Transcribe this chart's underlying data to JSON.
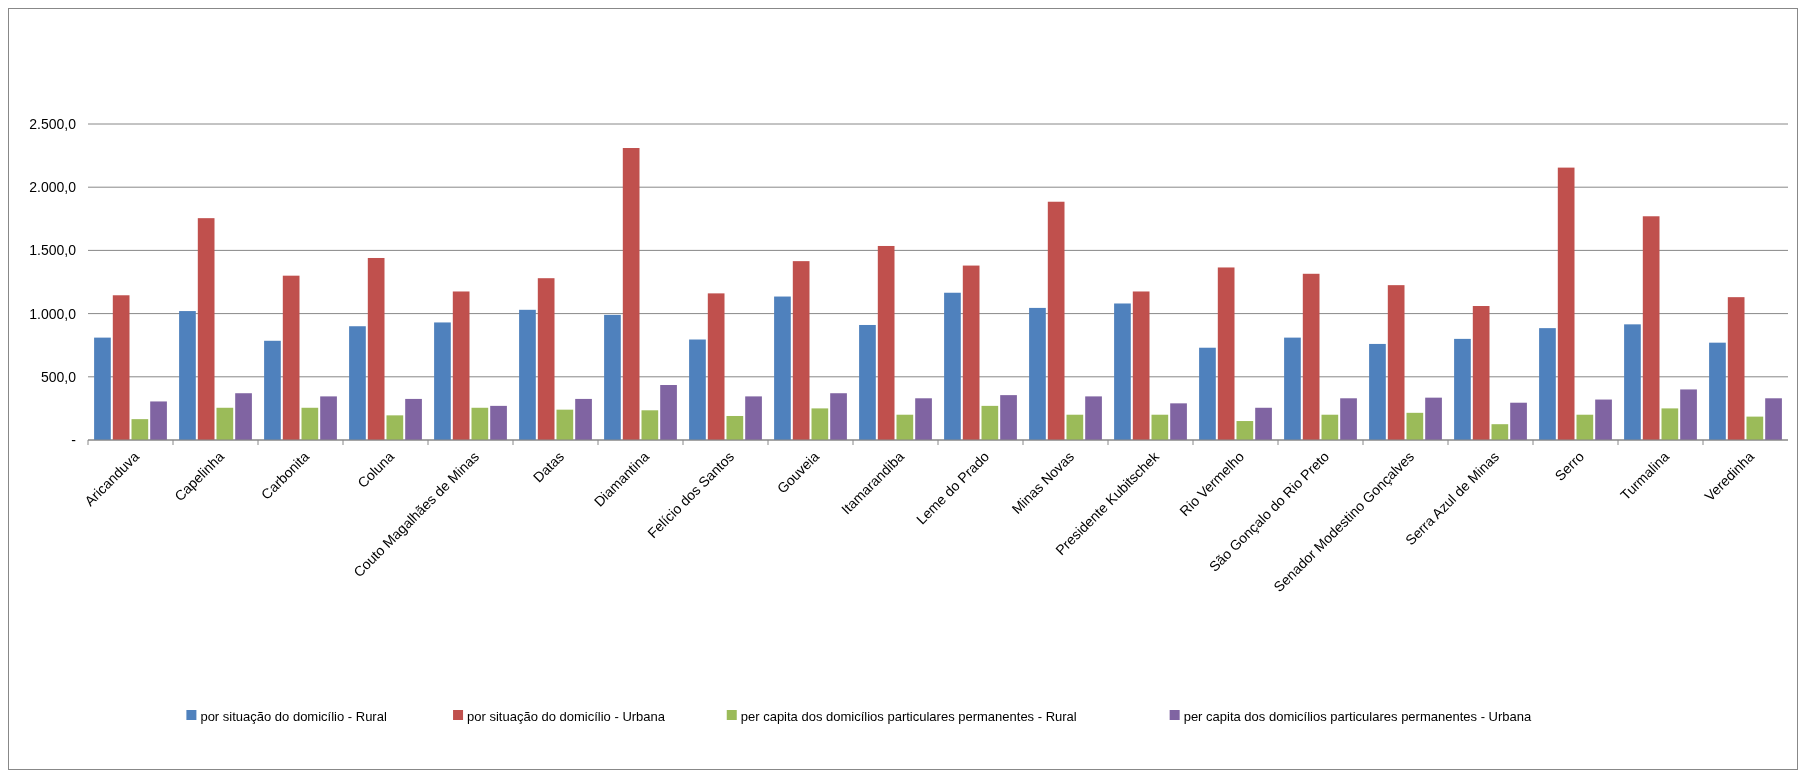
{
  "chart_data": {
    "type": "bar",
    "categories": [
      "Aricanduva",
      "Capelinha",
      "Carbonita",
      "Coluna",
      "Couto Magalhães de Minas",
      "Datas",
      "Diamantina",
      "Felício dos Santos",
      "Gouveia",
      "Itamarandiba",
      "Leme do Prado",
      "Minas Novas",
      "Presidente Kubitschek",
      "Rio Vermelho",
      "São Gonçalo do Rio Preto",
      "Senador Modestino Gonçalves",
      "Serra Azul de Minas",
      "Serro",
      "Turmalina",
      "Veredinha"
    ],
    "series": [
      {
        "name": "por situação do domicílio - Rural",
        "color": "#4f81bd",
        "values": [
          810,
          1020,
          785,
          900,
          930,
          1030,
          990,
          795,
          1135,
          910,
          1165,
          1045,
          1080,
          730,
          810,
          760,
          800,
          885,
          915,
          770
        ]
      },
      {
        "name": "por situação do domicílio - Urbana",
        "color": "#c0504d",
        "values": [
          1145,
          1755,
          1300,
          1440,
          1175,
          1280,
          2310,
          1160,
          1415,
          1535,
          1380,
          1885,
          1175,
          1365,
          1315,
          1225,
          1060,
          2155,
          1770,
          1130
        ]
      },
      {
        "name": "per capita dos domicílios particulares permanentes - Rural",
        "color": "#9bbb59",
        "values": [
          165,
          255,
          255,
          195,
          255,
          240,
          235,
          190,
          250,
          200,
          270,
          200,
          200,
          150,
          200,
          215,
          125,
          200,
          250,
          185
        ]
      },
      {
        "name": "per capita dos domicílios particulares permanentes - Urbana",
        "color": "#8064a2",
        "values": [
          305,
          370,
          345,
          325,
          270,
          325,
          435,
          345,
          370,
          330,
          355,
          345,
          290,
          255,
          330,
          335,
          295,
          320,
          400,
          330
        ]
      }
    ],
    "ylim": [
      0,
      2500
    ],
    "yticks": [
      {
        "value": 0,
        "label": "-"
      },
      {
        "value": 500,
        "label": "500,0"
      },
      {
        "value": 1000,
        "label": "1.000,0"
      },
      {
        "value": 1500,
        "label": "1.500,0"
      },
      {
        "value": 2000,
        "label": "2.000,0"
      },
      {
        "value": 2500,
        "label": "2.500,0"
      }
    ],
    "grid": "y",
    "legend": "bottom"
  }
}
